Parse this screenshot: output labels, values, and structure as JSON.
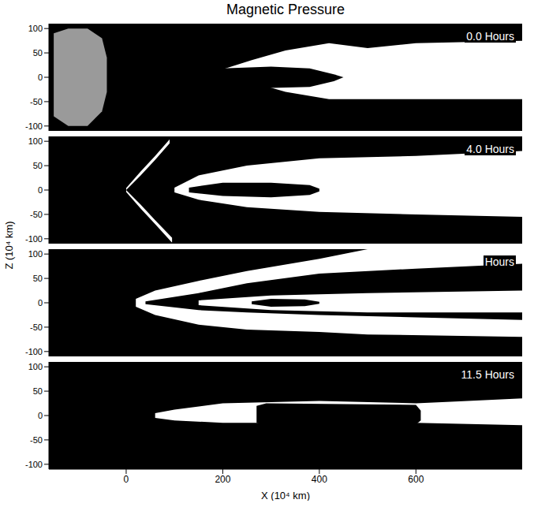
{
  "chart_data": {
    "type": "area",
    "title": "Magnetic Pressure",
    "x_label": "X (10⁴ km)",
    "y_label": "Z (10⁴ km)",
    "xlim": [
      -160,
      820
    ],
    "ylim": [
      -110,
      110
    ],
    "xticks": [
      0,
      200,
      400,
      600
    ],
    "yticks": [
      -100,
      -50,
      0,
      50,
      100
    ],
    "grid": false,
    "panels": [
      {
        "annotation": "0.0 Hours",
        "series": [
          {
            "color": "#9a9a9a",
            "x": [
              -150,
              -120,
              -80,
              -50,
              -40
            ],
            "low": [
              -80,
              -100,
              -100,
              -70,
              -30
            ],
            "high": [
              90,
              100,
              100,
              80,
              40
            ]
          },
          {
            "color": "#ffffff",
            "x": [
              180,
              260,
              330,
              420,
              500,
              600,
              820
            ],
            "low": [
              0,
              -10,
              -30,
              -45,
              -45,
              -45,
              -45
            ],
            "high": [
              10,
              35,
              55,
              70,
              60,
              70,
              75
            ]
          },
          {
            "color": "#000000",
            "x": [
              100,
              200,
              300,
              380,
              430,
              450
            ],
            "low": [
              -8,
              -18,
              -22,
              -20,
              -8,
              0
            ],
            "high": [
              8,
              18,
              22,
              18,
              6,
              0
            ]
          }
        ]
      },
      {
        "annotation": "4.0 Hours",
        "series": [
          {
            "color": "#ffffff",
            "x": [
              0,
              30,
              60,
              90
            ],
            "low": [
              0,
              30,
              62,
              96
            ],
            "high": [
              4,
              38,
              70,
              104
            ]
          },
          {
            "color": "#ffffff",
            "x": [
              0,
              30,
              60,
              95
            ],
            "low": [
              -4,
              -38,
              -70,
              -108
            ],
            "high": [
              0,
              -30,
              -62,
              -98
            ]
          },
          {
            "color": "#ffffff",
            "x": [
              100,
              150,
              250,
              400,
              600,
              820
            ],
            "low": [
              -5,
              -20,
              -35,
              -45,
              -50,
              -55
            ],
            "high": [
              5,
              30,
              50,
              65,
              70,
              80
            ]
          },
          {
            "color": "#000000",
            "x": [
              130,
              200,
              300,
              380,
              400
            ],
            "low": [
              -5,
              -12,
              -15,
              -10,
              -3
            ],
            "high": [
              5,
              15,
              15,
              10,
              3
            ]
          }
        ]
      },
      {
        "annotation": "Hours",
        "series": [
          {
            "color": "#ffffff",
            "x": [
              20,
              60,
              150,
              250,
              400,
              500,
              820
            ],
            "low": [
              -8,
              -25,
              -45,
              -55,
              -60,
              -65,
              -70
            ],
            "high": [
              8,
              25,
              45,
              65,
              90,
              110,
              110
            ]
          },
          {
            "color": "#000000",
            "x": [
              40,
              150,
              250,
              400,
              600,
              820
            ],
            "low": [
              -3,
              -15,
              -20,
              -25,
              -30,
              -35
            ],
            "high": [
              3,
              20,
              40,
              60,
              70,
              80
            ]
          },
          {
            "color": "#ffffff",
            "x": [
              150,
              300,
              500,
              820
            ],
            "low": [
              -5,
              -15,
              -20,
              -20
            ],
            "high": [
              5,
              15,
              20,
              25
            ]
          },
          {
            "color": "#000000",
            "x": [
              260,
              300,
              370,
              400
            ],
            "low": [
              -3,
              -8,
              -7,
              -2
            ],
            "high": [
              3,
              8,
              7,
              2
            ]
          }
        ]
      },
      {
        "annotation": "11.5 Hours",
        "series": [
          {
            "color": "#ffffff",
            "x": [
              60,
              100,
              200,
              400,
              600,
              820
            ],
            "low": [
              -5,
              -10,
              -15,
              -15,
              -15,
              -20
            ],
            "high": [
              5,
              12,
              25,
              30,
              25,
              35
            ]
          },
          {
            "color": "#000000",
            "x": [
              270,
              290,
              600,
              610
            ],
            "low": [
              -15,
              -20,
              -18,
              -10
            ],
            "high": [
              20,
              25,
              22,
              10
            ]
          }
        ]
      }
    ]
  }
}
